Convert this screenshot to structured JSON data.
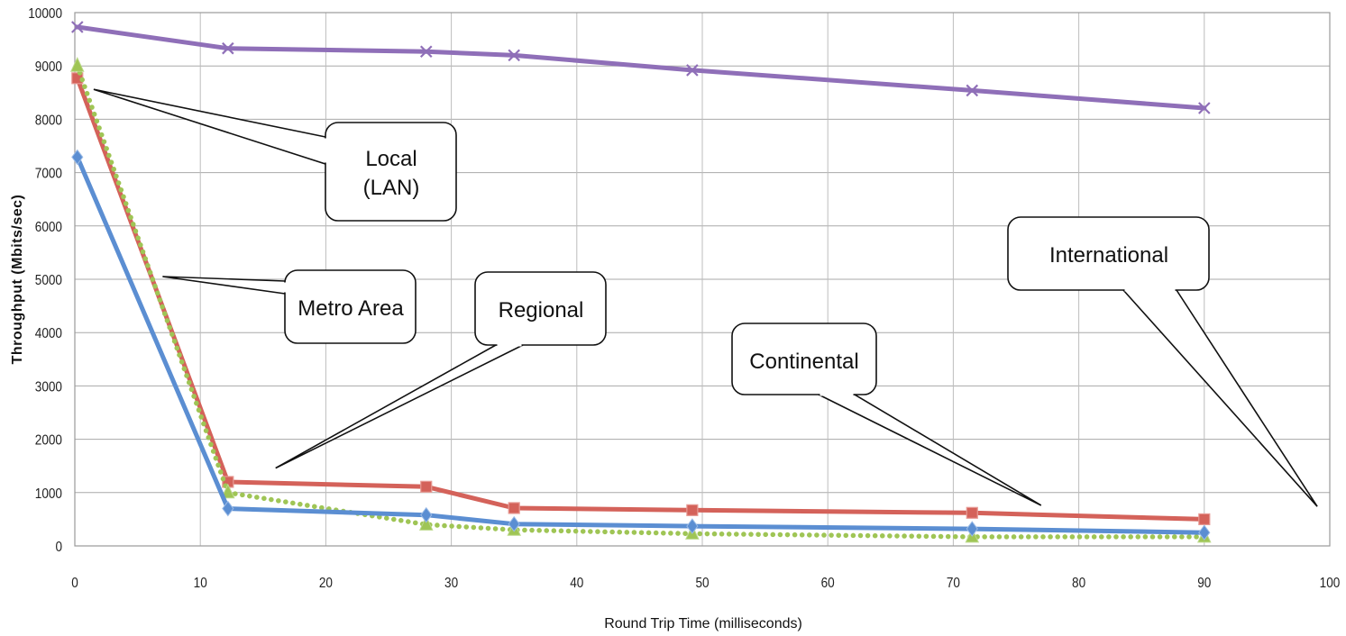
{
  "chart_data": {
    "type": "line",
    "xlabel": "Round Trip Time (milliseconds)",
    "ylabel": "Throughput (Mbits/sec)",
    "xlim": [
      0,
      100
    ],
    "ylim": [
      0,
      10000
    ],
    "x_ticks": [
      "0",
      "10",
      "20",
      "30",
      "40",
      "50",
      "60",
      "70",
      "80",
      "90",
      "100"
    ],
    "y_ticks": [
      "0",
      "1000",
      "2000",
      "3000",
      "4000",
      "5000",
      "6000",
      "7000",
      "8000",
      "9000",
      "10000"
    ],
    "grid": true,
    "legend": "none",
    "series": [
      {
        "color": "#8f6fb8",
        "marker": "x",
        "line_style": "solid",
        "points": [
          [
            0.2,
            9730
          ],
          [
            12.2,
            9330
          ],
          [
            28,
            9270
          ],
          [
            35,
            9200
          ],
          [
            49.2,
            8920
          ],
          [
            71.5,
            8540
          ],
          [
            90,
            8210
          ]
        ]
      },
      {
        "color": "#d4625a",
        "marker": "square",
        "line_style": "solid",
        "points": [
          [
            0.2,
            8770
          ],
          [
            12.2,
            1200
          ],
          [
            28,
            1110
          ],
          [
            35,
            710
          ],
          [
            49.2,
            670
          ],
          [
            71.5,
            620
          ],
          [
            90,
            500
          ]
        ]
      },
      {
        "color": "#9fc555",
        "marker": "triangle",
        "line_style": "dotted",
        "points": [
          [
            0.2,
            9000
          ],
          [
            12.2,
            1000
          ],
          [
            28,
            400
          ],
          [
            35,
            300
          ],
          [
            49.2,
            230
          ],
          [
            71.5,
            170
          ],
          [
            90,
            170
          ]
        ]
      },
      {
        "color": "#5b8ed2",
        "marker": "diamond",
        "line_style": "solid",
        "points": [
          [
            0.2,
            7290
          ],
          [
            12.2,
            700
          ],
          [
            28,
            580
          ],
          [
            35,
            410
          ],
          [
            49.2,
            370
          ],
          [
            71.5,
            320
          ],
          [
            90,
            250
          ]
        ]
      }
    ],
    "annotations": [
      {
        "id": "local",
        "lines": [
          "Local",
          "(LAN)"
        ],
        "pointer_to": [
          [
            1.5,
            8560
          ]
        ]
      },
      {
        "id": "metro",
        "lines": [
          "Metro Area"
        ],
        "pointer_to": [
          [
            7,
            5050
          ]
        ]
      },
      {
        "id": "regional",
        "lines": [
          "Regional"
        ],
        "pointer_to": [
          [
            16,
            1460
          ]
        ]
      },
      {
        "id": "continental",
        "lines": [
          "Continental"
        ],
        "pointer_to": [
          [
            77,
            760
          ]
        ]
      },
      {
        "id": "international",
        "lines": [
          "International"
        ],
        "pointer_to": [
          [
            99,
            740
          ]
        ]
      }
    ]
  }
}
